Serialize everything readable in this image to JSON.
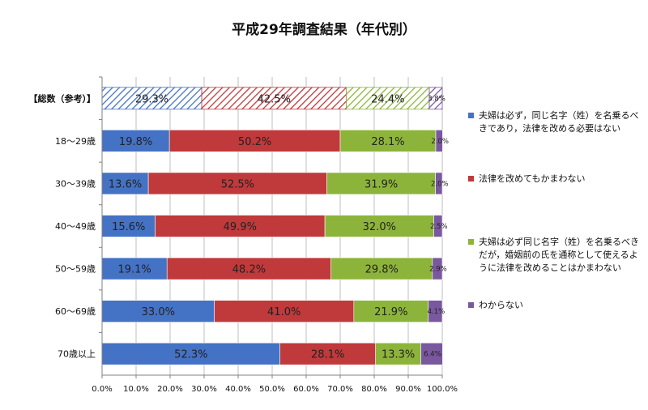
{
  "chart_data": {
    "type": "bar",
    "orientation": "horizontal",
    "stacked": true,
    "title": "平成29年調査結果（年代別）",
    "categories": [
      "【総数（参考）】",
      "18～29歳",
      "30～39歳",
      "40～49歳",
      "50～59歳",
      "60～69歳",
      "70歳以上"
    ],
    "series": [
      {
        "name": "夫婦は必ず，同じ名字（姓）を名乗るべきであり，法律を改める必要はない",
        "color": "#4472c4",
        "values": [
          29.3,
          19.8,
          13.6,
          15.6,
          19.1,
          33.0,
          52.3
        ]
      },
      {
        "name": "法律を改めてもかまわない",
        "color": "#c0393b",
        "values": [
          42.5,
          50.2,
          52.5,
          49.9,
          48.2,
          41.0,
          28.1
        ]
      },
      {
        "name": "夫婦は必ず同じ名字（姓）を名乗るべきだが，婚姻前の氏を通称として使えるように法律を改めることはかまわない",
        "color": "#8db43a",
        "values": [
          24.4,
          28.1,
          31.9,
          32.0,
          29.8,
          21.9,
          13.3
        ]
      },
      {
        "name": "わからない",
        "color": "#7a58a0",
        "values": [
          3.8,
          2.0,
          2.0,
          2.5,
          2.9,
          4.1,
          6.4
        ]
      }
    ],
    "value_labels": [
      [
        "29.3%",
        "42.5%",
        "24.4%",
        "3.8%"
      ],
      [
        "19.8%",
        "50.2%",
        "28.1%",
        "2.0%"
      ],
      [
        "13.6%",
        "52.5%",
        "31.9%",
        "2.0%"
      ],
      [
        "15.6%",
        "49.9%",
        "32.0%",
        "2.5%"
      ],
      [
        "19.1%",
        "48.2%",
        "29.8%",
        "2.9%"
      ],
      [
        "33.0%",
        "41.0%",
        "21.9%",
        "4.1%"
      ],
      [
        "52.3%",
        "28.1%",
        "13.3%",
        "6.4%"
      ]
    ],
    "hatched_rows": [
      "【総数（参考）】"
    ],
    "xticks": [
      "0.0%",
      "10.0%",
      "20.0%",
      "30.0%",
      "40.0%",
      "50.0%",
      "60.0%",
      "70.0%",
      "80.0%",
      "90.0%",
      "100.0%"
    ],
    "xlim": [
      0,
      100
    ],
    "grid": true,
    "legend_position": "right",
    "legend_entries": [
      "夫婦は必ず，同じ名字（姓）を名乗るべきであり，法律を改める必要はない",
      "法律を改めてもかまわない",
      "夫婦は必ず同じ名字（姓）を名乗るべきだが，婚姻前の氏を通称として使えるように法律を改めることはかまわない",
      "わからない"
    ]
  }
}
